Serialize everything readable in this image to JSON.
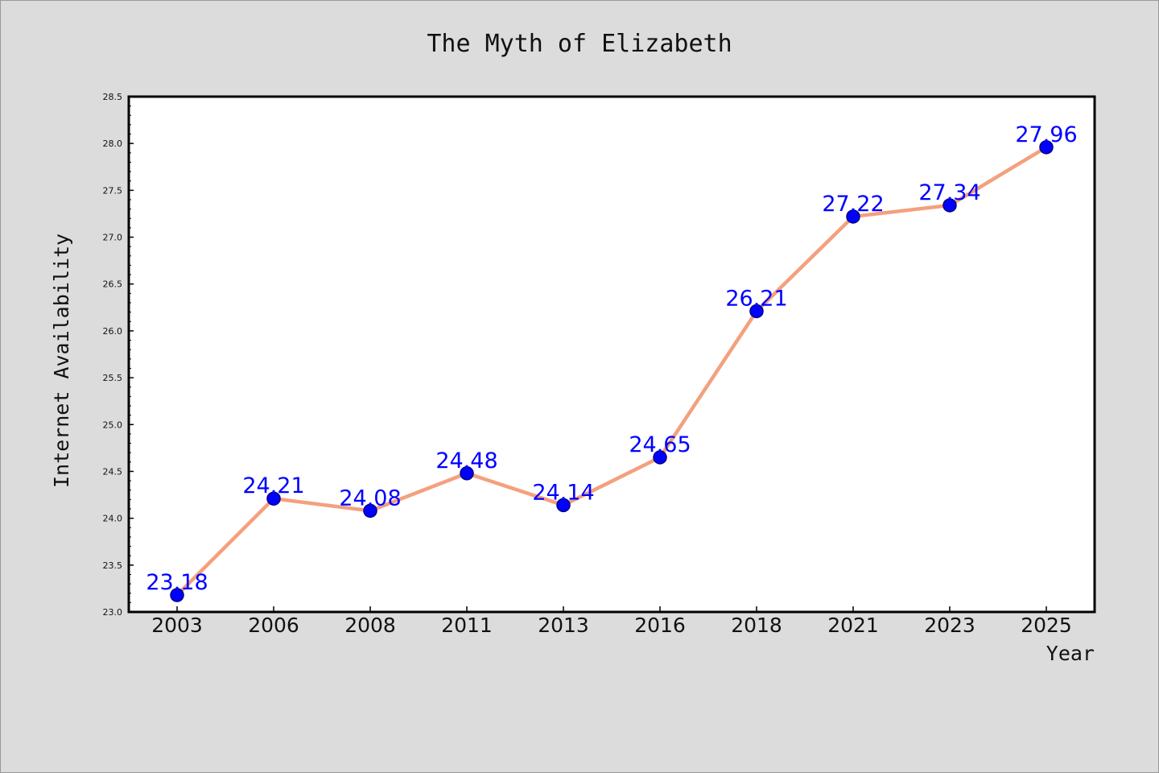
{
  "chart_data": {
    "type": "line",
    "title": "The Myth of Elizabeth",
    "xlabel": "Year",
    "ylabel": "Internet Availability",
    "categories": [
      "2003",
      "2006",
      "2008",
      "2011",
      "2013",
      "2016",
      "2018",
      "2021",
      "2023",
      "2025"
    ],
    "series": [
      {
        "values": [
          23.18,
          24.21,
          24.08,
          24.48,
          24.14,
          24.65,
          26.21,
          27.22,
          27.34,
          27.96
        ]
      }
    ],
    "data_labels": [
      "23.18",
      "24.21",
      "24.08",
      "24.48",
      "24.14",
      "24.65",
      "26.21",
      "27.22",
      "27.34",
      "27.96"
    ],
    "ylim": [
      23.0,
      28.5
    ],
    "yticks": [
      23.0,
      23.5,
      24.0,
      24.5,
      25.0,
      25.5,
      26.0,
      26.5,
      27.0,
      27.5,
      28.0,
      28.5
    ],
    "ytick_labels": [
      "23.0",
      "23.5",
      "24.0",
      "24.5",
      "25.0",
      "25.5",
      "26.0",
      "26.5",
      "27.0",
      "27.5",
      "28.0",
      "28.5"
    ],
    "grid": false,
    "legend": false,
    "colors": {
      "background": "#dcdcdc",
      "plot_background": "#ffffff",
      "line": "#f4a07e",
      "marker_fill": "#0000ff",
      "marker_edge": "#000080",
      "data_label": "#0000ff",
      "axis": "#000000"
    }
  }
}
